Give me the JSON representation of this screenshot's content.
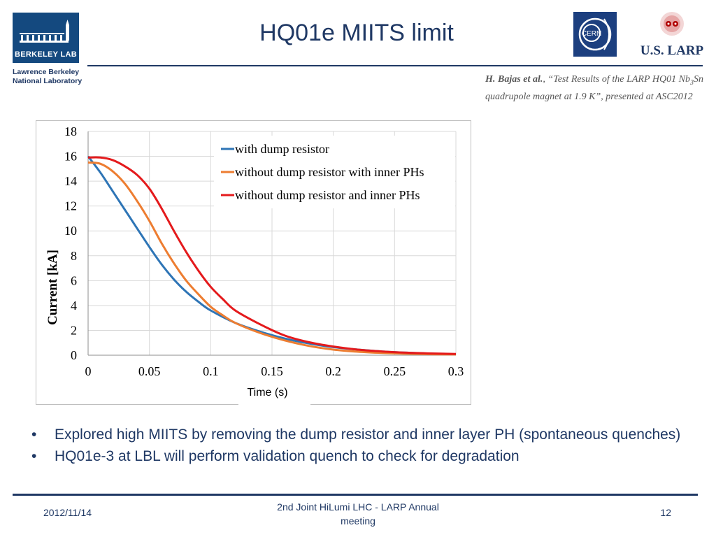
{
  "header": {
    "title": "HQ01e MIITS limit",
    "berkeley_logo_text": "BERKELEY LAB",
    "lab_name_line1": "Lawrence Berkeley",
    "lab_name_line2": "National Laboratory",
    "cern_logo_text": "CERN",
    "larp_logo_text": "U.S. LARP"
  },
  "citation": {
    "authors": "H. Bajas et al.",
    "rest_1": ", “Test Results of the LARP HQ01 Nb",
    "sub": "3",
    "rest_2": "Sn quadrupole magnet at 1.9 K”, presented at ASC2012"
  },
  "chart_data": {
    "type": "line",
    "ylabel": "Current [kA]",
    "xlabel": "Time (s)",
    "xlim": [
      0,
      0.3
    ],
    "ylim": [
      0,
      18
    ],
    "x_ticks": [
      "0",
      "0.05",
      "0.1",
      "0.15",
      "0.2",
      "0.25",
      "0.3"
    ],
    "y_ticks": [
      "0",
      "2",
      "4",
      "6",
      "8",
      "10",
      "12",
      "14",
      "16",
      "18"
    ],
    "grid": true,
    "legend_position": "top-right",
    "series": [
      {
        "name": "with dump resistor",
        "color": "#2e75b6",
        "x": [
          0,
          0.01,
          0.02,
          0.03,
          0.04,
          0.05,
          0.06,
          0.07,
          0.08,
          0.09,
          0.1,
          0.12,
          0.14,
          0.16,
          0.18,
          0.2,
          0.22,
          0.24,
          0.26,
          0.28,
          0.3
        ],
        "y": [
          16.0,
          14.7,
          13.2,
          11.7,
          10.2,
          8.7,
          7.3,
          6.1,
          5.1,
          4.3,
          3.6,
          2.6,
          1.9,
          1.35,
          0.95,
          0.65,
          0.45,
          0.3,
          0.2,
          0.12,
          0.08
        ]
      },
      {
        "name": "without dump resistor with inner PHs",
        "color": "#ed7d31",
        "x": [
          0,
          0.01,
          0.02,
          0.03,
          0.04,
          0.05,
          0.06,
          0.07,
          0.08,
          0.09,
          0.1,
          0.11,
          0.12,
          0.14,
          0.16,
          0.18,
          0.2,
          0.22,
          0.24,
          0.26,
          0.28,
          0.3
        ],
        "y": [
          15.5,
          15.4,
          14.8,
          13.8,
          12.4,
          10.8,
          9.0,
          7.4,
          6.0,
          4.9,
          3.9,
          3.2,
          2.6,
          1.8,
          1.2,
          0.75,
          0.45,
          0.28,
          0.18,
          0.12,
          0.08,
          0.06
        ]
      },
      {
        "name": "without dump resistor and inner PHs",
        "color": "#e41a1c",
        "x": [
          0,
          0.01,
          0.02,
          0.03,
          0.04,
          0.05,
          0.06,
          0.07,
          0.08,
          0.09,
          0.1,
          0.11,
          0.12,
          0.14,
          0.16,
          0.18,
          0.2,
          0.22,
          0.24,
          0.26,
          0.28,
          0.3
        ],
        "y": [
          15.9,
          15.9,
          15.7,
          15.2,
          14.5,
          13.4,
          11.8,
          10.0,
          8.3,
          6.8,
          5.5,
          4.5,
          3.6,
          2.5,
          1.6,
          1.05,
          0.7,
          0.45,
          0.3,
          0.2,
          0.14,
          0.1
        ]
      }
    ]
  },
  "bullets": [
    "Explored high MIITS by removing the dump resistor and inner layer PH (spontaneous quenches)",
    "HQ01e-3 at LBL will perform validation quench to check for degradation"
  ],
  "bullet_symbol": "•",
  "footer": {
    "date": "2012/11/14",
    "center": "2nd Joint HiLumi LHC - LARP Annual meeting",
    "page": "12"
  }
}
